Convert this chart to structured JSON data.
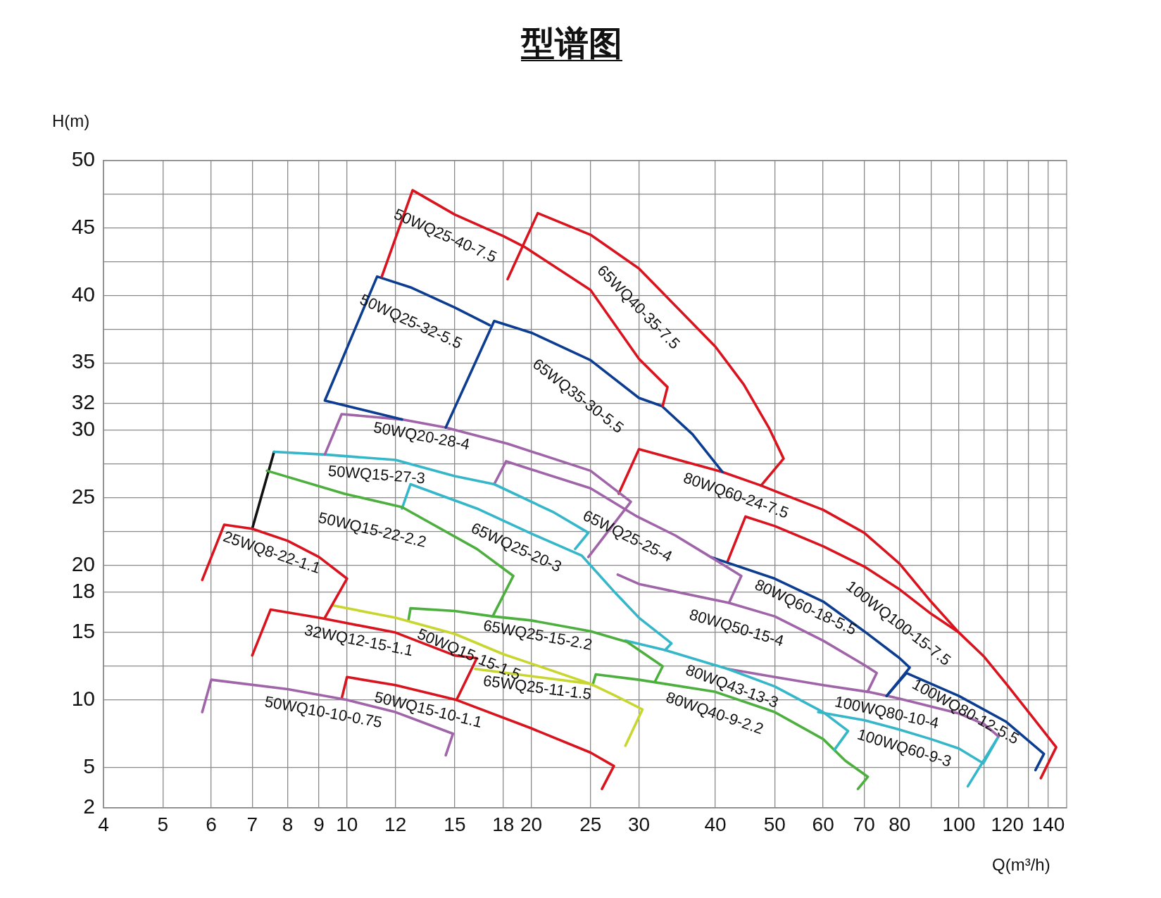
{
  "chart_data": {
    "type": "line",
    "title": "型谱图",
    "xlabel": "Q(m³/h)",
    "ylabel": "H(m)",
    "log": "x",
    "xlim": [
      4,
      150
    ],
    "ylim": [
      2,
      50
    ],
    "xticks": [
      4,
      5,
      6,
      7,
      8,
      9,
      10,
      12,
      15,
      18,
      20,
      25,
      30,
      40,
      50,
      60,
      70,
      80,
      {
        "value": 90,
        "label": null
      },
      100,
      {
        "value": 110,
        "label": null
      },
      120,
      {
        "value": 130,
        "label": null
      },
      140
    ],
    "yticks": [
      2,
      5,
      10,
      {
        "value": 12.5,
        "label": null
      },
      15,
      18,
      20,
      {
        "value": 22.5,
        "label": null
      },
      25,
      {
        "value": 27.5,
        "label": null
      },
      30,
      32,
      35,
      {
        "value": 37.5,
        "label": null
      },
      40,
      {
        "value": 42.5,
        "label": null
      },
      45,
      {
        "value": 47.5,
        "label": null
      },
      50
    ],
    "grid": true,
    "legend": false,
    "marker": "none",
    "line_style": "solid",
    "series": [
      {
        "name": "50WQ25-40-7.5",
        "color": "#d9141f",
        "x": [
          11.4,
          12.8,
          15,
          18,
          19.5,
          25,
          30,
          33.4,
          32.8
        ],
        "values": [
          41.4,
          47.8,
          46.0,
          44.4,
          43.6,
          40.4,
          35.3,
          33.2,
          31.8
        ]
      },
      {
        "name": "65WQ40-35-7.5",
        "color": "#d9141f",
        "x": [
          18.3,
          20.5,
          25,
          30,
          40,
          44.5,
          48.9,
          51.7,
          47.5
        ],
        "values": [
          41.2,
          46.1,
          44.5,
          42.0,
          36.2,
          33.4,
          30.2,
          27.9,
          25.9
        ]
      },
      {
        "name": "50WQ25-32-5.5",
        "color": "#0d3d91",
        "x": [
          12.3,
          9.2,
          11.2,
          12.7,
          15,
          17.1
        ],
        "values": [
          30.8,
          32.2,
          41.4,
          40.6,
          39.1,
          37.8
        ]
      },
      {
        "name": "65WQ35-30-5.5",
        "color": "#0d3d91",
        "x": [
          14.5,
          17.4,
          20.1,
          25,
          30,
          32.7,
          36.7,
          41.1
        ],
        "values": [
          30.2,
          38.1,
          37.2,
          35.2,
          32.4,
          31.8,
          29.7,
          26.9
        ]
      },
      {
        "name": "50WQ20-28-4",
        "color": "#a064a8",
        "x": [
          9.2,
          9.8,
          12.3,
          14.5,
          18.3,
          25,
          29.1,
          24.8
        ],
        "values": [
          28.2,
          31.2,
          30.8,
          30.2,
          29.0,
          27.0,
          24.7,
          20.6
        ]
      },
      {
        "name": "80WQ60-24-7.5",
        "color": "#d9141f",
        "x": [
          27.8,
          30,
          41.1,
          47.5,
          50,
          60,
          70,
          80,
          90,
          100
        ],
        "values": [
          25.3,
          28.6,
          26.9,
          25.9,
          25.5,
          24.1,
          22.4,
          20.1,
          17.3,
          15.0
        ]
      },
      {
        "name": "50WQ15-27-3",
        "color": "#35b7c9",
        "x": [
          7.6,
          9.2,
          12,
          15,
          17.4,
          21.8,
          24.8,
          23.6
        ],
        "values": [
          28.4,
          28.2,
          27.8,
          26.6,
          26.0,
          23.9,
          22.4,
          21.2
        ]
      },
      {
        "name": "65WQ25-25-4",
        "color": "#a064a8",
        "x": [
          17.4,
          18.2,
          20,
          25,
          29.8,
          34.4,
          39.3,
          44.1,
          42.1
        ],
        "values": [
          26.0,
          27.7,
          27.1,
          25.7,
          23.6,
          22.2,
          20.6,
          19.2,
          17.2
        ]
      },
      {
        "name": "50WQ15-22-2.2",
        "color": "#4caf3e",
        "x": [
          7.4,
          9.9,
          12.3,
          16.3,
          18.7,
          17.3
        ],
        "values": [
          27.0,
          25.3,
          24.3,
          21.2,
          19.2,
          16.2
        ]
      },
      {
        "name": "65WQ25-20-3",
        "color": "#35b7c9",
        "x": [
          12.3,
          12.7,
          16.3,
          20.1,
          24.2,
          27.5,
          30,
          33.9,
          33.1
        ],
        "values": [
          24.2,
          26.0,
          24.2,
          22.3,
          20.7,
          17.9,
          16.1,
          14.2,
          13.7
        ]
      },
      {
        "name": "25WQ8-22-1.1",
        "color": "#d9141f",
        "x": [
          5.8,
          6.3,
          7,
          8,
          9,
          10,
          9.2
        ],
        "values": [
          18.9,
          23.0,
          22.7,
          21.8,
          20.6,
          19.0,
          16.1
        ]
      },
      {
        "name": "80WQ60-18-5.5",
        "color": "#0d3d91",
        "x": [
          39.3,
          50,
          60,
          70,
          80,
          83.1,
          76.2
        ],
        "values": [
          20.6,
          19.0,
          17.3,
          15.1,
          13.1,
          12.4,
          10.3
        ]
      },
      {
        "name": "100WQ100-15-7.5",
        "color": "#d9141f",
        "x": [
          41.9,
          44.8,
          50,
          60,
          70,
          80,
          90,
          100,
          110,
          120,
          130,
          144.2,
          136.1
        ],
        "values": [
          20.3,
          23.6,
          22.9,
          21.4,
          19.9,
          18.2,
          16.4,
          15.0,
          13.2,
          11.1,
          9.1,
          6.5,
          4.2
        ]
      },
      {
        "name": "80WQ50-15-4",
        "color": "#a064a8",
        "x": [
          27.7,
          30,
          42.1,
          50,
          60,
          70,
          73.4,
          70.9
        ],
        "values": [
          19.3,
          18.6,
          17.2,
          16.2,
          14.4,
          12.6,
          12.0,
          10.6
        ]
      },
      {
        "name": "32WQ12-15-1.1",
        "color": "#d9141f",
        "x": [
          7,
          7.5,
          9,
          10,
          12,
          15,
          16.3,
          15.1
        ],
        "values": [
          13.3,
          16.7,
          16.1,
          15.7,
          15.0,
          13.3,
          13.1,
          10.0
        ]
      },
      {
        "name": "50WQ15-15-1.5",
        "color": "#c8d62f",
        "x": [
          9.5,
          12,
          15,
          18,
          20,
          25
        ],
        "values": [
          17.0,
          16.1,
          14.9,
          13.4,
          12.7,
          11.2
        ]
      },
      {
        "name": "65WQ25-15-2.2",
        "color": "#4caf3e",
        "x": [
          12.6,
          12.7,
          15,
          17.3,
          20,
          25,
          28.7,
          32.8,
          31.9
        ],
        "values": [
          15.9,
          16.8,
          16.6,
          16.2,
          15.9,
          15.1,
          14.3,
          12.5,
          11.4
        ]
      },
      {
        "name": "65WQ25-11-1.5",
        "color": "#c8d62f",
        "x": [
          16.2,
          25,
          27.5,
          30.4,
          28.5
        ],
        "values": [
          12.3,
          11.2,
          10.3,
          9.3,
          6.6
        ]
      },
      {
        "name": "80WQ43-13-3",
        "color": "#35b7c9",
        "x": [
          28.5,
          33.1,
          41.9,
          50,
          60,
          65.9,
          62.6
        ],
        "values": [
          14.4,
          13.7,
          12.3,
          11.0,
          9.1,
          7.7,
          6.3
        ]
      },
      {
        "name": "100WQ80-12-5.5",
        "color": "#0d3d91",
        "x": [
          76.2,
          82.1,
          100,
          119.3,
          137.7,
          133.4
        ],
        "values": [
          10.3,
          12.0,
          10.3,
          8.4,
          6.0,
          4.8
        ]
      },
      {
        "name": "50WQ10-10-0.75",
        "color": "#a064a8",
        "x": [
          5.8,
          6,
          8,
          10,
          12,
          14.9,
          14.5
        ],
        "values": [
          9.1,
          11.5,
          10.8,
          10.0,
          9.1,
          7.5,
          5.9
        ]
      },
      {
        "name": "50WQ15-10-1.1",
        "color": "#d9141f",
        "x": [
          9.8,
          10,
          12,
          15.1,
          20,
          25,
          27.3,
          26.1
        ],
        "values": [
          10.1,
          11.7,
          11.1,
          10.0,
          7.9,
          6.1,
          5.1,
          3.4
        ]
      },
      {
        "name": "80WQ40-9-2.2",
        "color": "#4caf3e",
        "x": [
          25.2,
          25.5,
          30,
          40,
          50,
          60,
          65.2,
          71,
          68.4
        ],
        "values": [
          11.1,
          11.9,
          11.5,
          10.6,
          9.1,
          7.1,
          5.5,
          4.3,
          3.4
        ]
      },
      {
        "name": "100WQ80-10-4",
        "color": "#a064a8",
        "x": [
          41.9,
          50,
          60,
          71.1,
          80,
          100,
          110,
          116.1
        ],
        "values": [
          12.3,
          11.7,
          11.1,
          10.6,
          10.1,
          9.0,
          8.2,
          7.3
        ]
      },
      {
        "name": "100WQ60-9-3",
        "color": "#35b7c9",
        "x": [
          58.9,
          70,
          80,
          90,
          100,
          109.6,
          116.1,
          103.4
        ],
        "values": [
          9.1,
          8.5,
          7.8,
          7.1,
          6.4,
          5.3,
          7.3,
          3.6
        ]
      },
      {
        "color": "#111111",
        "x": [
          7.6,
          7
        ],
        "values": [
          28.4,
          22.7
        ]
      }
    ]
  }
}
